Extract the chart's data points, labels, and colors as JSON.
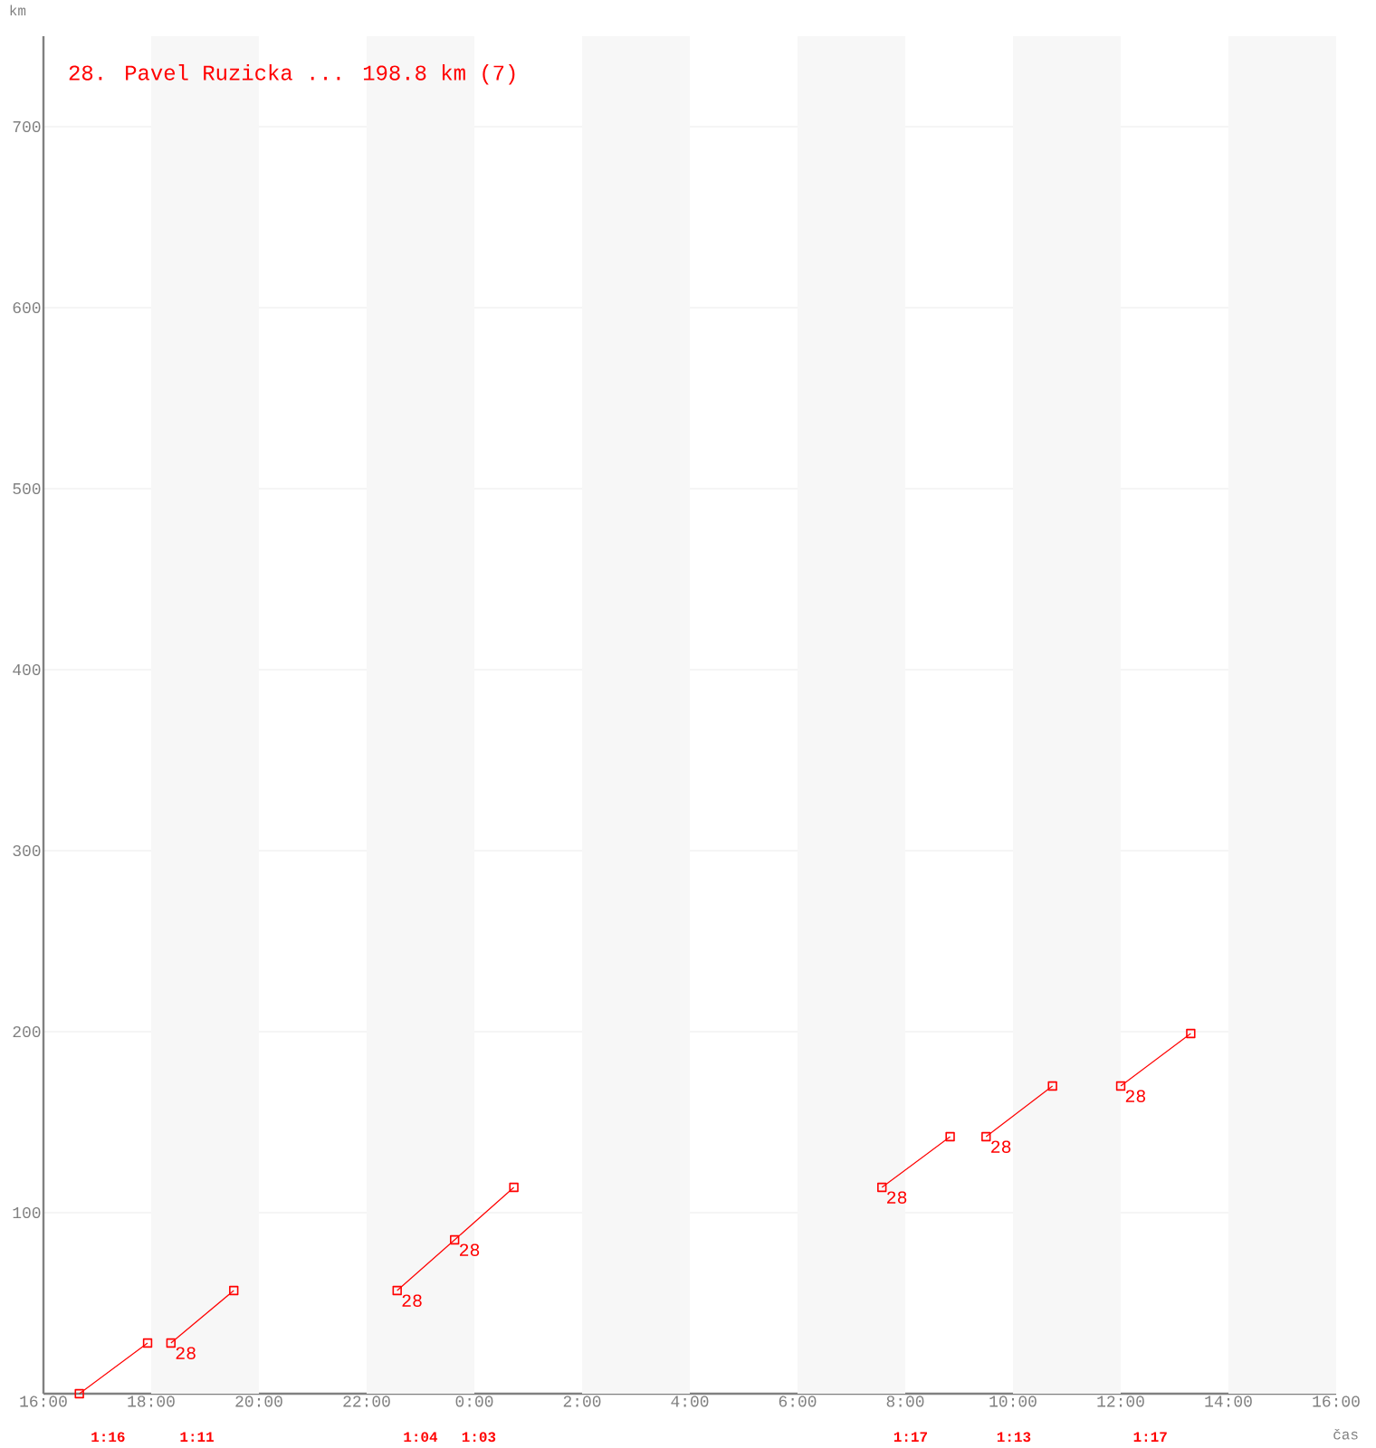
{
  "chart_data": {
    "type": "line",
    "title": "28. Pavel Ruzicka ... 198.8 km (7)",
    "xlabel": "čas",
    "ylabel": "km",
    "xlim": [
      "2000-01-01T16:00",
      "2000-01-02T16:00"
    ],
    "ylim": [
      0,
      750
    ],
    "xticks": [
      {
        "value": "2000-01-01T16:00",
        "label": "16:00"
      },
      {
        "value": "2000-01-01T18:00",
        "label": "18:00"
      },
      {
        "value": "2000-01-01T20:00",
        "label": "20:00"
      },
      {
        "value": "2000-01-01T22:00",
        "label": "22:00"
      },
      {
        "value": "2000-01-02T00:00",
        "label": "0:00"
      },
      {
        "value": "2000-01-02T02:00",
        "label": "2:00"
      },
      {
        "value": "2000-01-02T04:00",
        "label": "4:00"
      },
      {
        "value": "2000-01-02T06:00",
        "label": "6:00"
      },
      {
        "value": "2000-01-02T08:00",
        "label": "8:00"
      },
      {
        "value": "2000-01-02T10:00",
        "label": "10:00"
      },
      {
        "value": "2000-01-02T12:00",
        "label": "12:00"
      },
      {
        "value": "2000-01-02T14:00",
        "label": "14:00"
      },
      {
        "value": "2000-01-02T16:00",
        "label": "16:00"
      }
    ],
    "yticks": [
      100,
      200,
      300,
      400,
      500,
      600,
      700
    ],
    "grid": "y",
    "marker": "square",
    "line_style": "solid",
    "series": [
      {
        "color": "#ff0000",
        "x": [
          "2000-01-01T16:40",
          "2000-01-01T17:56"
        ],
        "values": [
          0,
          28
        ]
      },
      {
        "color": "#ff0000",
        "x": [
          "2000-01-01T18:22",
          "2000-01-01T19:32"
        ],
        "values": [
          28,
          57
        ]
      },
      {
        "color": "#ff0000",
        "x": [
          "2000-01-01T22:34",
          "2000-01-01T23:38",
          "2000-01-02T00:44"
        ],
        "values": [
          57,
          85,
          114
        ]
      },
      {
        "color": "#ff0000",
        "x": [
          "2000-01-02T07:34",
          "2000-01-02T08:50"
        ],
        "values": [
          114,
          142
        ]
      },
      {
        "color": "#ff0000",
        "x": [
          "2000-01-02T09:30",
          "2000-01-02T10:44"
        ],
        "values": [
          142,
          170
        ]
      },
      {
        "color": "#ff0000",
        "x": [
          "2000-01-02T12:00",
          "2000-01-02T13:18"
        ],
        "values": [
          170,
          199
        ]
      }
    ],
    "bands": [
      {
        "axis": "x",
        "from": "2000-01-01T18:00",
        "to": "2000-01-01T20:00",
        "color": "#f7f7f7"
      },
      {
        "axis": "x",
        "from": "2000-01-01T22:00",
        "to": "2000-01-02T00:00",
        "color": "#f7f7f7"
      },
      {
        "axis": "x",
        "from": "2000-01-02T02:00",
        "to": "2000-01-02T04:00",
        "color": "#f7f7f7"
      },
      {
        "axis": "x",
        "from": "2000-01-02T06:00",
        "to": "2000-01-02T08:00",
        "color": "#f7f7f7"
      },
      {
        "axis": "x",
        "from": "2000-01-02T10:00",
        "to": "2000-01-02T12:00",
        "color": "#f7f7f7"
      },
      {
        "axis": "x",
        "from": "2000-01-02T14:00",
        "to": "2000-01-02T16:00",
        "color": "#f7f7f7"
      }
    ],
    "annotations": [
      {
        "text": "28",
        "x": "2000-01-01T18:22",
        "y": 28
      },
      {
        "text": "28",
        "x": "2000-01-01T22:34",
        "y": 57
      },
      {
        "text": "28",
        "x": "2000-01-01T23:38",
        "y": 85
      },
      {
        "text": "28",
        "x": "2000-01-02T07:34",
        "y": 114
      },
      {
        "text": "28",
        "x": "2000-01-02T09:30",
        "y": 142
      },
      {
        "text": "28",
        "x": "2000-01-02T12:00",
        "y": 170
      },
      "1:16",
      "1:11",
      "1:04",
      "1:03",
      "1:17",
      "1:13",
      "1:17"
    ]
  }
}
